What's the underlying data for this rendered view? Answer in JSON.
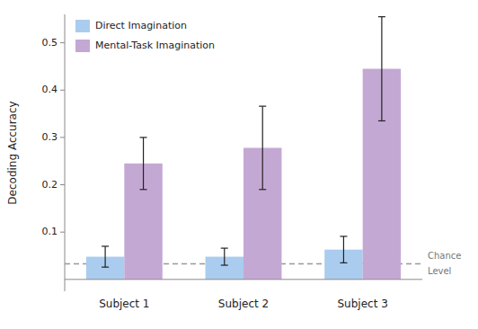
{
  "chart_data": {
    "type": "bar",
    "categories": [
      "Subject 1",
      "Subject 2",
      "Subject 3"
    ],
    "series": [
      {
        "name": "Direct Imagination",
        "color": "#aaccee",
        "values": [
          0.048,
          0.048,
          0.063
        ],
        "errors": [
          0.022,
          0.018,
          0.028
        ]
      },
      {
        "name": "Mental-Task Imagination",
        "color": "#c4a8d4",
        "values": [
          0.245,
          0.278,
          0.445
        ],
        "errors_low": [
          0.055,
          0.088,
          0.11
        ],
        "errors_high": [
          0.055,
          0.088,
          0.11
        ]
      }
    ],
    "y_label": "Decoding Accuracy",
    "ylim": [
      -0.025,
      0.56
    ],
    "yticks": [
      0.1,
      0.2,
      0.3,
      0.4,
      0.5
    ],
    "reference_line": {
      "y": 0.033,
      "label_lines": [
        "Chance",
        "Level"
      ]
    },
    "legend": "upper left",
    "grid": false
  }
}
